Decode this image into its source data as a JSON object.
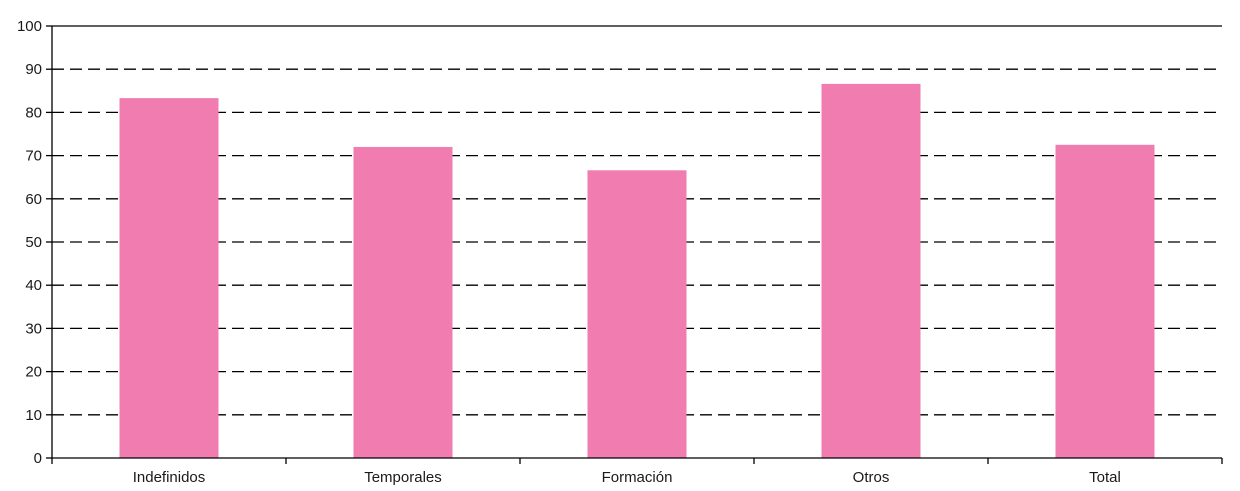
{
  "chart_data": {
    "type": "bar",
    "categories": [
      "Indefinidos",
      "Temporales",
      "Formación",
      "Otros",
      "Total"
    ],
    "values": [
      83.3,
      72.0,
      66.6,
      86.6,
      72.5
    ],
    "ylim": [
      0,
      100
    ],
    "yticks": [
      0,
      10,
      20,
      30,
      40,
      50,
      60,
      70,
      80,
      90,
      100
    ],
    "grid": true,
    "grid_style": "dashed",
    "bar_color": "#f07cb0",
    "title": "",
    "xlabel": "",
    "ylabel": ""
  }
}
